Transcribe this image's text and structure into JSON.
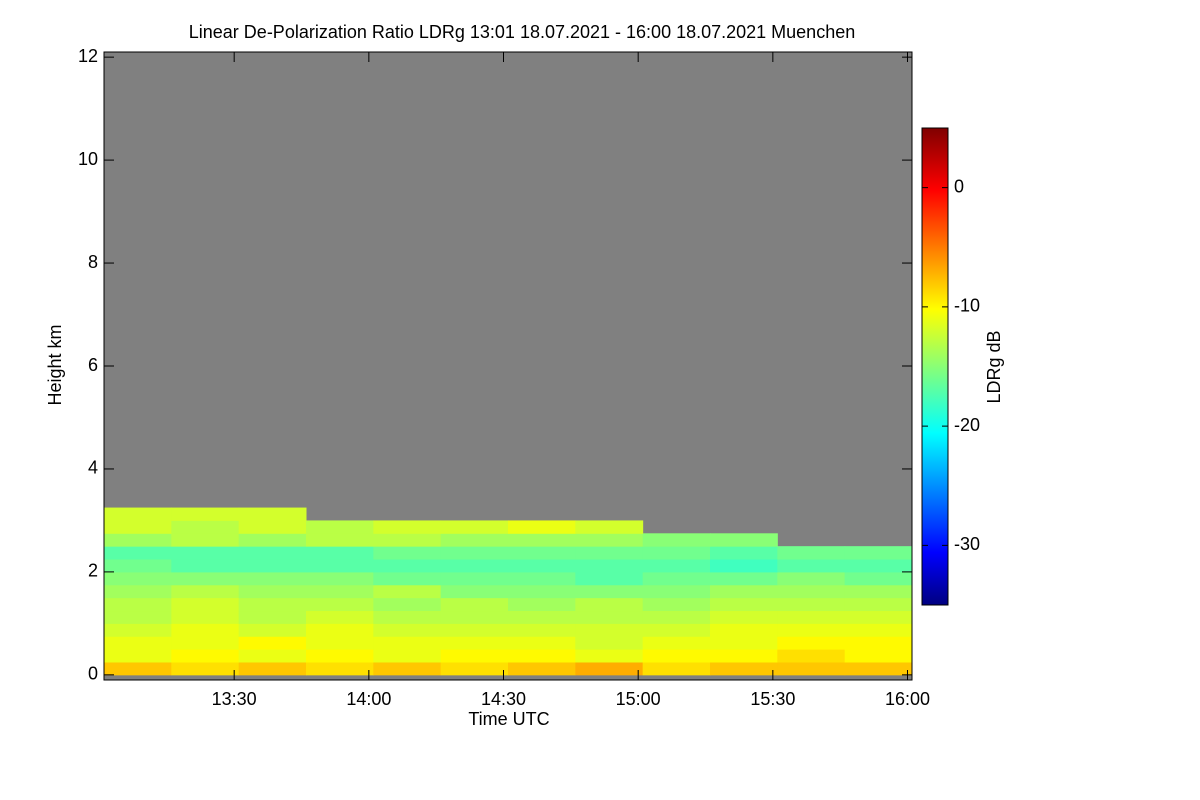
{
  "chart_data": {
    "type": "heatmap",
    "title": "Linear De-Polarization Ratio LDRg   13:01 18.07.2021 - 16:00 18.07.2021 Muenchen",
    "x_label": "Time UTC",
    "y_label": "Height km",
    "colorbar_label": "LDRg dB",
    "xlim": [
      781,
      961
    ],
    "ylim": [
      -0.1,
      12.1
    ],
    "zlim": [
      -35,
      5
    ],
    "xticks": [
      {
        "value": 810,
        "label": "13:30"
      },
      {
        "value": 840,
        "label": "14:00"
      },
      {
        "value": 870,
        "label": "14:30"
      },
      {
        "value": 900,
        "label": "15:00"
      },
      {
        "value": 930,
        "label": "15:30"
      },
      {
        "value": 960,
        "label": "16:00"
      }
    ],
    "yticks": [
      0,
      2,
      4,
      6,
      8,
      10,
      12
    ],
    "zticks": [
      0,
      -10,
      -20,
      -30
    ],
    "background": "#808080",
    "colormap": [
      {
        "pos": 0,
        "color": "#000080"
      },
      {
        "pos": 0.11,
        "color": "#0000ff"
      },
      {
        "pos": 0.36,
        "color": "#00ffff"
      },
      {
        "pos": 0.62,
        "color": "#ffff00"
      },
      {
        "pos": 0.87,
        "color": "#ff0000"
      },
      {
        "pos": 1,
        "color": "#800000"
      }
    ],
    "x_edges": [
      781,
      796,
      811,
      826,
      841,
      856,
      871,
      886,
      901,
      916,
      931,
      946,
      961
    ],
    "y_edges": [
      0,
      0.25,
      0.5,
      0.75,
      1,
      1.25,
      1.5,
      1.75,
      2,
      2.25,
      2.5,
      2.75,
      3,
      3.25
    ],
    "z": [
      [
        -8,
        -9,
        -8,
        -9,
        -8,
        -9,
        -8,
        -7,
        -9,
        -8,
        -8,
        -8
      ],
      [
        -11,
        -10,
        -11,
        -10,
        -11,
        -10,
        -10,
        -11,
        -10,
        -10,
        -9,
        -10
      ],
      [
        -11,
        -11,
        -10,
        -11,
        -11,
        -11,
        -11,
        -12,
        -11,
        -11,
        -10,
        -10
      ],
      [
        -12,
        -11,
        -12,
        -11,
        -12,
        -12,
        -12,
        -12,
        -12,
        -11,
        -11,
        -11
      ],
      [
        -13,
        -12,
        -13,
        -12,
        -13,
        -13,
        -13,
        -13,
        -13,
        -12,
        -12,
        -12
      ],
      [
        -13,
        -12,
        -13,
        -13,
        -14,
        -13,
        -14,
        -13,
        -14,
        -13,
        -13,
        -13
      ],
      [
        -14,
        -13,
        -14,
        -14,
        -13,
        -15,
        -15,
        -15,
        -15,
        -14,
        -14,
        -14
      ],
      [
        -15,
        -15,
        -15,
        -15,
        -16,
        -16,
        -16,
        -17,
        -16,
        -16,
        -15,
        -16
      ],
      [
        -16,
        -17,
        -17,
        -17,
        -17,
        -17,
        -17,
        -17,
        -17,
        -18,
        -17,
        -17
      ],
      [
        -17,
        -17,
        -17,
        -17,
        -16,
        -16,
        -16,
        -16,
        -16,
        -17,
        -16,
        -16
      ],
      [
        -14,
        -13,
        -14,
        -13,
        -13,
        -14,
        -14,
        -14,
        -15,
        -15,
        null,
        null
      ],
      [
        -12,
        -13,
        -12,
        -13,
        -12,
        -12,
        -11,
        -12,
        null,
        null,
        null,
        null
      ],
      [
        -12,
        -12,
        -12,
        null,
        null,
        null,
        null,
        null,
        null,
        null,
        null,
        null
      ]
    ]
  }
}
